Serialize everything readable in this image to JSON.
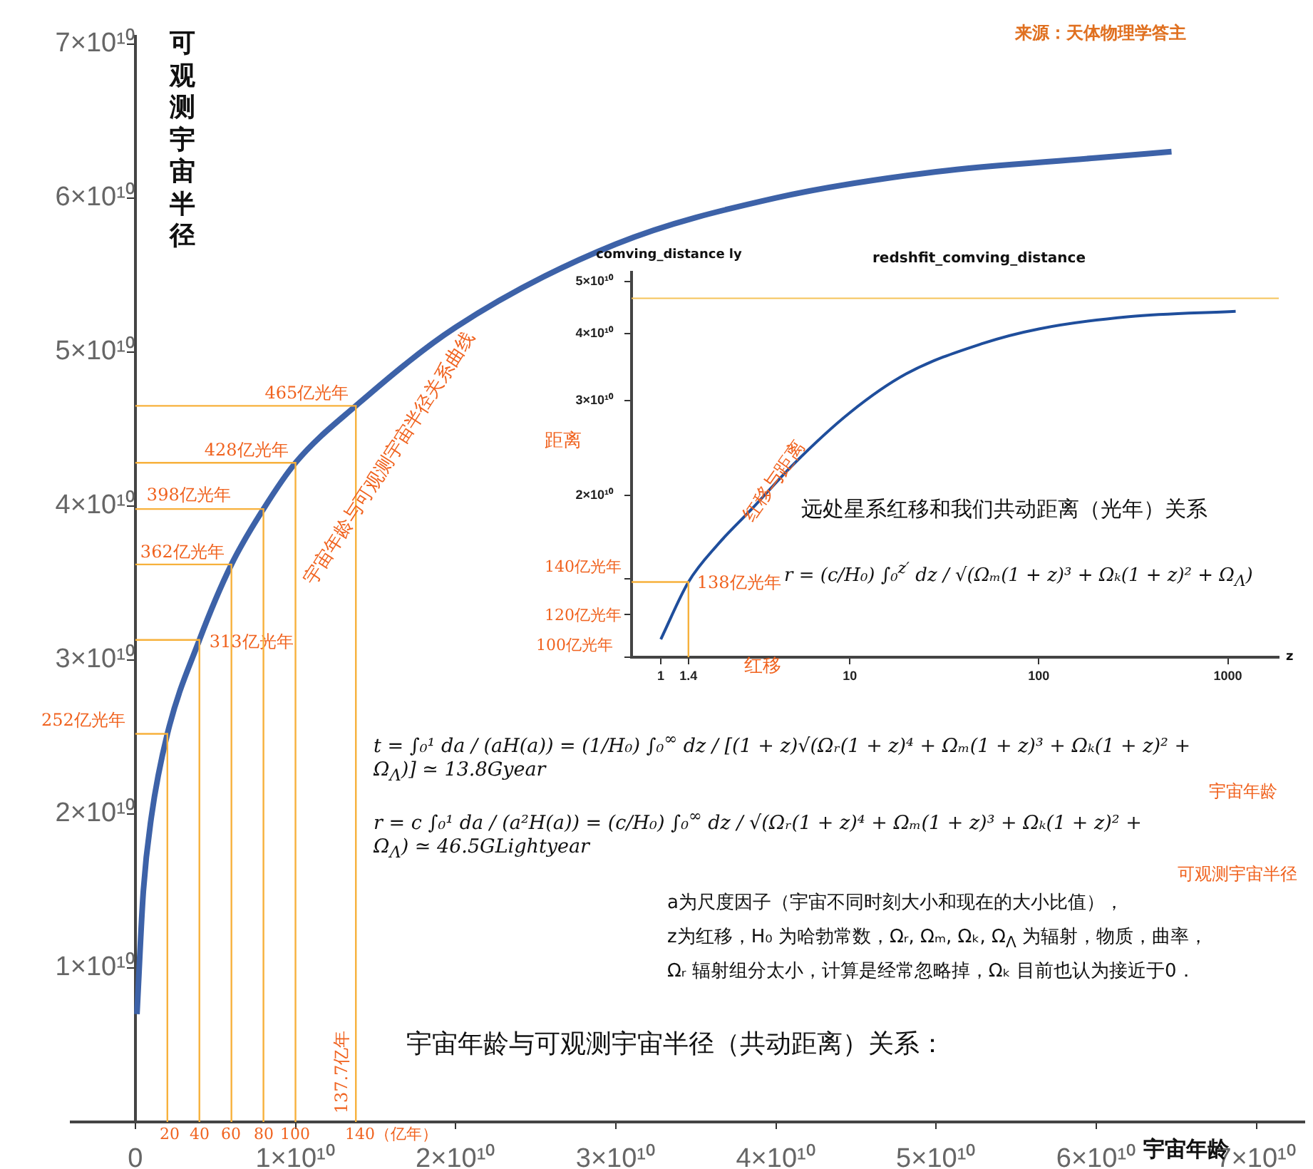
{
  "chart_data": [
    {
      "type": "line",
      "title": "宇宙年龄与可观测宇宙半径（共动距离）关系：",
      "xlabel": "宇宙年龄",
      "ylabel": "可观测宇宙半径",
      "x": [
        100000000.0,
        500000000.0,
        1000000000.0,
        2000000000.0,
        4000000000.0,
        6000000000.0,
        8000000000.0,
        10000000000.0,
        13770000000.0,
        20000000000.0,
        30000000000.0,
        40000000000.0,
        50000000000.0,
        60000000000.0,
        64700000000.0
      ],
      "series": [
        {
          "color": "#3d62a8",
          "values": [
            7000000000.0,
            15000000000.0,
            19800000000.0,
            25200000000.0,
            31300000000.0,
            36200000000.0,
            39800000000.0,
            42800000000.0,
            46500000000.0,
            51600000000.0,
            57000000000.0,
            60000000000.0,
            61700000000.0,
            62600000000.0,
            63000000000.0
          ]
        }
      ],
      "xlim": [
        -4000000000.0,
        73000000000.0
      ],
      "ylim": [
        0,
        70500000000.0
      ],
      "xticks": [
        0,
        {
          "value": 10000000000.0,
          "label": "1×10¹⁰"
        },
        {
          "value": 20000000000.0,
          "label": "2×10¹⁰"
        },
        {
          "value": 30000000000.0,
          "label": "3×10¹⁰"
        },
        {
          "value": 40000000000.0,
          "label": "4×10¹⁰"
        },
        {
          "value": 50000000000.0,
          "label": "5×10¹⁰"
        },
        {
          "value": 60000000000.0,
          "label": "6×10¹⁰"
        },
        {
          "value": 70000000000.0,
          "label": "7×10¹⁰"
        }
      ],
      "yticks": [
        {
          "value": 10000000000.0,
          "label": "1×10¹⁰"
        },
        {
          "value": 20000000000.0,
          "label": "2×10¹⁰"
        },
        {
          "value": 30000000000.0,
          "label": "3×10¹⁰"
        },
        {
          "value": 40000000000.0,
          "label": "4×10¹⁰"
        },
        {
          "value": 50000000000.0,
          "label": "5×10¹⁰"
        },
        {
          "value": 60000000000.0,
          "label": "6×10¹⁰"
        },
        {
          "value": 70000000000.0,
          "label": "7×10¹⁰"
        }
      ],
      "annotations": [
        {
          "text": "252亿光年",
          "x": 2000000000.0,
          "y": 25200000000.0
        },
        {
          "text": "313亿光年",
          "x": 4000000000.0,
          "y": 31300000000.0
        },
        {
          "text": "362亿光年",
          "x": 6000000000.0,
          "y": 36200000000.0
        },
        {
          "text": "398亿光年",
          "x": 8000000000.0,
          "y": 39800000000.0
        },
        {
          "text": "428亿光年",
          "x": 10000000000.0,
          "y": 42800000000.0
        },
        {
          "text": "465亿光年",
          "x": 13770000000.0,
          "y": 46500000000.0
        },
        "137.7亿年",
        "20",
        "40",
        "60",
        "80",
        "100",
        "140（亿年）",
        "宇宙年龄与可观测宇宙半径关系曲线",
        "t = ∫₀¹ da / (aH(a)) = (1/H₀) ∫₀$^{∞}$ dz / [(1 + z)√(Ωᵣ(1 + z)⁴ + Ωₘ(1 + z)³ + Ωₖ(1 + z)² + Ω$_{Λ}$)] ≃ 13.8Gyear",
        "宇宙年龄",
        "r = c ∫₀¹ da / (a²H(a)) = (c/H₀) ∫₀$^{∞}$ dz / √(Ωᵣ(1 + z)⁴ + Ωₘ(1 + z)³ + Ωₖ(1 + z)² + Ω$_{Λ}$) ≃ 46.5GLightyear",
        "可观测宇宙半径",
        "a为尺度因子（宇宙不同时刻大小和现在的大小比值），",
        "z为红移，H₀ 为哈勃常数，Ωᵣ, Ωₘ, Ωₖ, Ω$_{Λ}$ 为辐射，物质，曲率，",
        "Ωᵣ 辐射组分太小，计算是经常忽略掉，Ωₖ 目前也认为接近于0．",
        "来源：天体物理学答主"
      ]
    },
    {
      "type": "line",
      "title": "redshfit_comving_distance",
      "xlabel": "z",
      "ylabel": "comving_distance ly",
      "log": "xy",
      "x": [
        1,
        1.4,
        2,
        3,
        5,
        10,
        20,
        50,
        100,
        300,
        1100
      ],
      "series": [
        {
          "color": "#1f4e9c",
          "values": [
            10800000000.0,
            13800000000.0,
            16200000000.0,
            18800000000.0,
            22800000000.0,
            28500000000.0,
            33700000000.0,
            38300000000.0,
            40800000000.0,
            43000000000.0,
            44000000000.0
          ]
        }
      ],
      "xlim": [
        0.7,
        1860
      ],
      "ylim": [
        10000000000.0,
        52000000000.0
      ],
      "xticks": [
        1,
        1.4,
        10,
        100,
        1000
      ],
      "yticks": [
        {
          "value": 10000000000.0,
          "label": null
        },
        {
          "value": 12000000000.0,
          "label": null
        },
        {
          "value": 14000000000.0,
          "label": null
        },
        {
          "value": 20000000000.0,
          "label": "2×10¹⁰"
        },
        {
          "value": 30000000000.0,
          "label": "3×10¹⁰"
        },
        {
          "value": 40000000000.0,
          "label": "4×10¹⁰"
        },
        {
          "value": 50000000000.0,
          "label": "5×10¹⁰"
        }
      ],
      "ref_lines": [
        {
          "axis": "y",
          "value": 46500000000.0,
          "color": "#f5c35a"
        }
      ],
      "annotations": [
        {
          "text": "138亿光年",
          "x": 1.4,
          "y": 13800000000.0
        },
        "100亿光年",
        "120亿光年",
        "140亿光年",
        "距离",
        "红移",
        "红移与距离",
        "远处星系红移和我们共动距离（光年）关系",
        "r = (c/H₀) ∫₀$^{z′}$ dz / √(Ωₘ(1 + z)³ + Ωₖ(1 + z)² + Ω$_{Λ}$)"
      ]
    }
  ]
}
